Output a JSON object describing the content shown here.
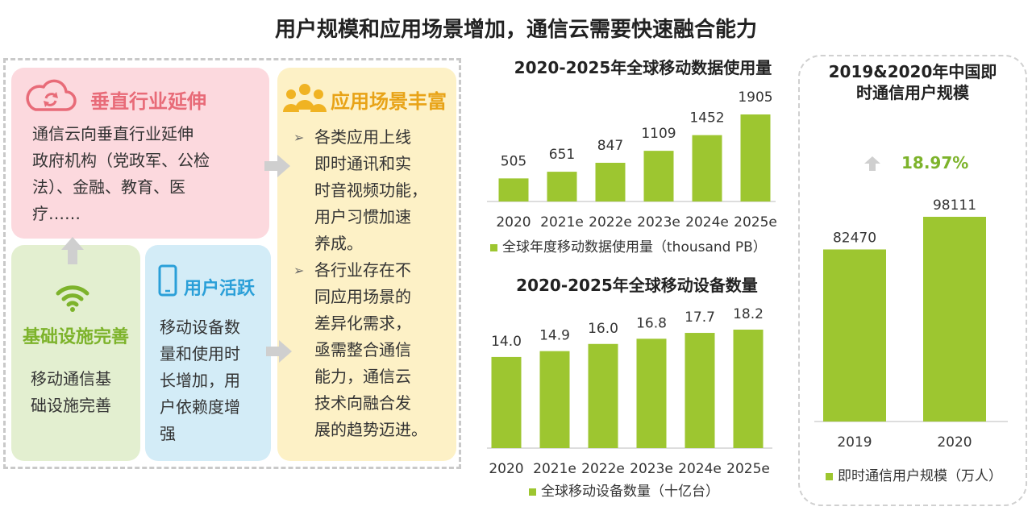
{
  "title": "用户规模和应用场景增加，通信云需要快速融合能力",
  "cards": {
    "vertical": {
      "title": "垂直行业延伸",
      "lines": [
        "通信云向垂直行业延伸",
        "政府机构（党政军、公检",
        "法）、金融、教育、医",
        "疗……"
      ]
    },
    "infra": {
      "title": "基础设施完善",
      "lines": [
        "移动通信基",
        "础设施完善"
      ]
    },
    "active": {
      "title": "用户活跃",
      "lines": [
        "移动设备数",
        "量和使用时",
        "长增加，用",
        "户依赖度增",
        "强"
      ]
    },
    "scenes": {
      "title": "应用场景丰富",
      "bullets": [
        {
          "marker": "➢",
          "lines": [
            "各类应用上线",
            "即时通讯和实",
            "时音视频功能，",
            "用户习惯加速",
            "养成。"
          ]
        },
        {
          "marker": "➢",
          "lines": [
            "各行业存在不",
            "同应用场景的",
            "差异化需求，",
            "亟需整合通信",
            "能力，通信云",
            "技术向融合发",
            "展的趋势迈进。"
          ]
        }
      ]
    }
  },
  "colors": {
    "bar": "#9dc630",
    "growth_text": "#7db32b",
    "up_arrow": "#cfcfcf"
  },
  "chart_data": [
    {
      "type": "bar",
      "title": "2020-2025年全球移动数据使用量",
      "categories": [
        "2020",
        "2021e",
        "2022e",
        "2023e",
        "2024e",
        "2025e"
      ],
      "series": [
        {
          "name": "全球年度移动数据使用量（thousand PB）",
          "values": [
            505,
            651,
            847,
            1109,
            1452,
            1905
          ]
        }
      ],
      "labels": [
        "505",
        "651",
        "847",
        "1109",
        "1452",
        "1905"
      ],
      "ylim": [
        0,
        1905
      ]
    },
    {
      "type": "bar",
      "title": "2020-2025年全球移动设备数量",
      "categories": [
        "2020",
        "2021e",
        "2022e",
        "2023e",
        "2024e",
        "2025e"
      ],
      "series": [
        {
          "name": "全球移动设备数量（十亿台）",
          "values": [
            14.0,
            14.9,
            16.0,
            16.8,
            17.7,
            18.2
          ]
        }
      ],
      "labels": [
        "14.0",
        "14.9",
        "16.0",
        "16.8",
        "17.7",
        "18.2"
      ],
      "ylim": [
        0,
        18.2
      ]
    },
    {
      "type": "bar",
      "title": "2019&2020年中国即时通信用户规模",
      "title_lines": [
        "2019&2020年中国即",
        "时通信用户规模"
      ],
      "categories": [
        "2019",
        "2020"
      ],
      "series": [
        {
          "name": "即时通信用户规模（万人）",
          "values": [
            82470,
            98111
          ]
        }
      ],
      "labels": [
        "82470",
        "98111"
      ],
      "growth": "18.97%",
      "ylim": [
        0,
        98111
      ]
    }
  ]
}
